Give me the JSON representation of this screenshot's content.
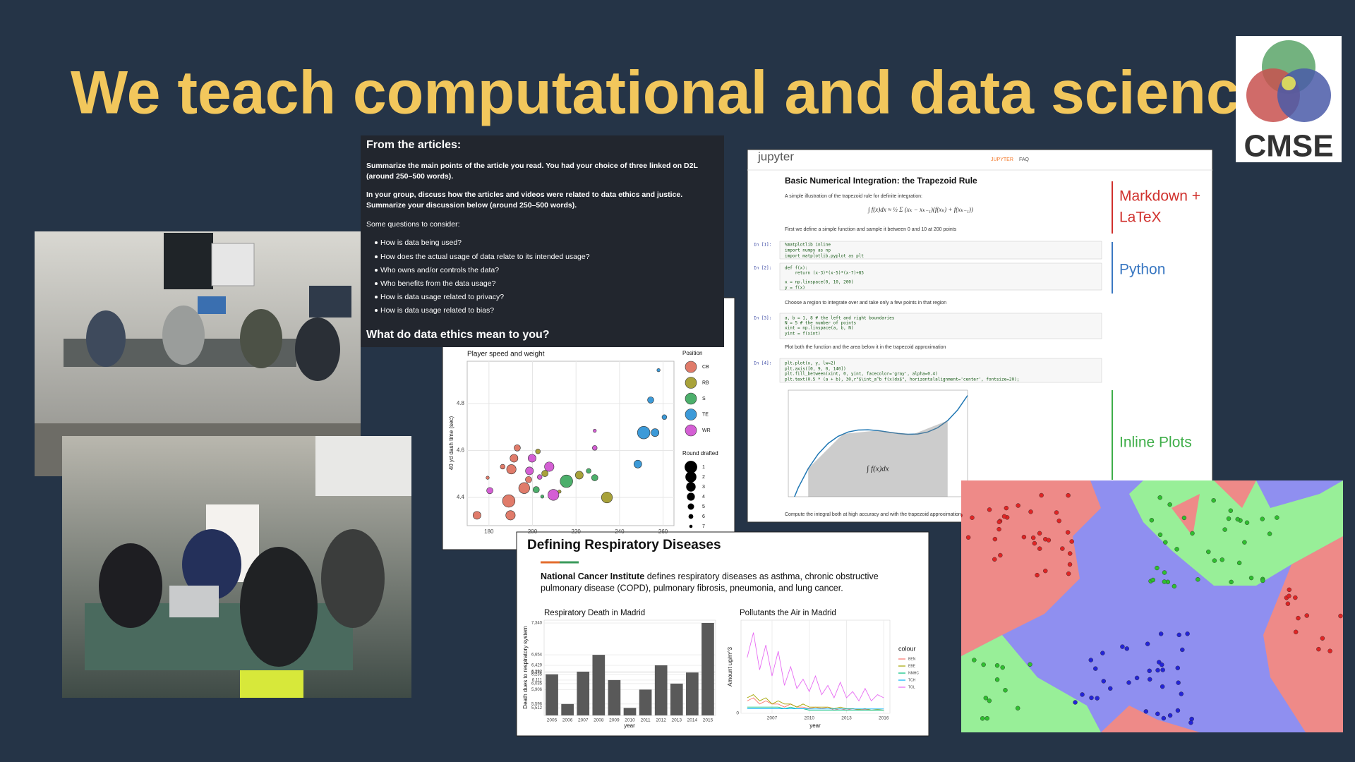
{
  "slide": {
    "title": "We teach computational and data science",
    "logo": "CMSE"
  },
  "articles": {
    "heading": "From the articles:",
    "paragraphs": [
      [
        "Summarize the main points of the article you read. You had your choice of three linked on D2L",
        "(around 250–500 words)."
      ],
      [
        "In your group, discuss how the articles and videos were related to data ethics and justice.",
        "Summarize your discussion below (around 250–500 words)."
      ]
    ],
    "prompt": "Some questions to consider:",
    "questions": [
      "How is data being used?",
      "How does the actual usage of data relate to its intended usage?",
      "Who owns and/or controls the data?",
      "Who benefits from the data usage?",
      "How is data usage related to privacy?",
      "How is data usage related to bias?"
    ],
    "closing": "What do data ethics mean to you?"
  },
  "notebook": {
    "brand": "jupyter",
    "nav": [
      "JUPYTER",
      "FAQ"
    ],
    "heading": "Basic Numerical Integration: the Trapezoid Rule",
    "notes": [
      "A simple illustration of the trapezoid rule for definite integration:",
      "First we define a simple function and sample it between 0 and 10 at 200 points",
      "Choose a region to integrate over and take only a few points in that region",
      "Plot both the function and the area below it in the trapezoid approximation",
      "Compute the integral both at high accuracy and with the trapezoid approximation"
    ],
    "cells": [
      {
        "prompt": "In [1]:",
        "code": [
          "%matplotlib inline",
          "import numpy as np",
          "import matplotlib.pyplot as plt"
        ]
      },
      {
        "prompt": "In [2]:",
        "code": [
          "def f(x):",
          "    return (x-3)*(x-5)*(x-7)+85",
          "x = np.linspace(0, 10, 200)",
          "y = f(x)"
        ]
      },
      {
        "prompt": "In [3]:",
        "code": [
          "a, b = 1, 8 # the left and right boundaries",
          "N = 5 # the number of points",
          "xint = np.linspace(a, b, N)",
          "yint = f(xint)"
        ]
      },
      {
        "prompt": "In [4]:",
        "code": [
          "plt.plot(x, y, lw=2)",
          "plt.axis([0, 9, 0, 140])",
          "plt.fill_between(xint, 0, yint, facecolor='gray', alpha=0.4)",
          "plt.text(0.5 * (a + b), 30,r\"$\\int_a^b f(x)dx$\", horizontalalignment='center', fontsize=20);"
        ]
      }
    ]
  },
  "annotations": [
    {
      "lines": [
        "Markdown +",
        "LaTeX"
      ],
      "color": "#d0312d"
    },
    {
      "lines": [
        "Python"
      ],
      "color": "#3a78c2"
    },
    {
      "lines": [
        "Inline Plots"
      ],
      "color": "#3fae49"
    }
  ],
  "respiratory": {
    "title": "Defining Respiratory Diseases",
    "source": "National Cancer Institute",
    "lines": [
      " defines respiratory diseases as asthma, chronic obstructive",
      "pulmonary disease (COPD), pulmonary fibrosis, pneumonia, and lung cancer."
    ]
  },
  "chart_data": [
    {
      "type": "scatter",
      "title": "Player speed and weight",
      "y_label": "40 yd dash time (sec)",
      "xlim": [
        170,
        265
      ],
      "ylim": [
        4.28,
        4.98
      ],
      "xticks": [
        180,
        200,
        220,
        240,
        260
      ],
      "yticks": [
        4.4,
        4.6,
        4.8
      ],
      "grid": true,
      "legend_title": "Position",
      "size_title": "Round drafted",
      "size_values": [
        1,
        2,
        3,
        4,
        5,
        6,
        7
      ],
      "series": [
        {
          "name": "CB",
          "color": "#e07b6a",
          "x": [
            193.0,
            190.3,
            189.1,
            189.9,
            174.5,
            186.3,
            198.2,
            179.4,
            191.5,
            196.2
          ],
          "values": [
            4.611,
            4.52,
            4.385,
            4.324,
            4.324,
            4.531,
            4.476,
            4.484,
            4.567,
            4.44
          ],
          "sizes": [
            5,
            3,
            1,
            3,
            4,
            6,
            5,
            7,
            4,
            2
          ]
        },
        {
          "name": "RB",
          "color": "#a8a23a",
          "x": [
            234.2,
            202.5,
            205.7,
            212.4,
            221.5
          ],
          "values": [
            4.4,
            4.596,
            4.502,
            4.425,
            4.495
          ],
          "sizes": [
            2,
            6,
            5,
            7,
            4
          ]
        },
        {
          "name": "S",
          "color": "#4caf6b",
          "x": [
            215.6,
            225.8,
            201.7,
            204.5,
            228.6
          ],
          "values": [
            4.469,
            4.513,
            4.433,
            4.404,
            4.484
          ],
          "sizes": [
            1,
            6,
            5,
            7,
            5
          ]
        },
        {
          "name": "TE",
          "color": "#3c9ad8",
          "x": [
            257.9,
            254.3,
            260.6,
            251.1,
            256.3,
            248.4
          ],
          "values": [
            4.942,
            4.815,
            4.742,
            4.676,
            4.676,
            4.542
          ],
          "sizes": [
            7,
            5,
            6,
            1,
            4,
            4
          ]
        },
        {
          "name": "WR",
          "color": "#d45fd4",
          "x": [
            228.6,
            228.6,
            203.3,
            180.4,
            209.6,
            198.6,
            207.7,
            199.8
          ],
          "values": [
            4.684,
            4.611,
            4.487,
            4.429,
            4.411,
            4.513,
            4.531,
            4.567
          ],
          "sizes": [
            7,
            6,
            6,
            5,
            2,
            4,
            3,
            4
          ]
        }
      ]
    },
    {
      "type": "bar",
      "title": "Respiratory Death in Madrid",
      "x_label": "year",
      "y_label": "Death dues to respiratory system",
      "color": "#595959",
      "categories": [
        "2005",
        "2006",
        "2007",
        "2008",
        "2009",
        "2010",
        "2011",
        "2012",
        "2013",
        "2014",
        "2015"
      ],
      "values": [
        6235,
        5596,
        6292,
        6654,
        6111,
        5512,
        5906,
        6429,
        6035,
        6274,
        7340
      ],
      "ylim": [
        5350,
        7400
      ],
      "grid": true,
      "yticks": [
        {
          "value": 5512,
          "label": "5,512"
        },
        {
          "value": 5596,
          "label": "5,596"
        },
        {
          "value": 5906,
          "label": "5,906"
        },
        {
          "value": 6035,
          "label": "6,035"
        },
        {
          "value": 6111,
          "label": "6,111"
        },
        {
          "value": 6235,
          "label": "6,235"
        },
        {
          "value": 6274,
          "label": "6,274"
        },
        {
          "value": 6292,
          "label": "6,292"
        },
        {
          "value": 6429,
          "label": "6,429"
        },
        {
          "value": 6654,
          "label": "6,654"
        },
        {
          "value": 7340,
          "label": "7,340"
        }
      ]
    },
    {
      "type": "line",
      "title": "Pollutants the Air in Madrid",
      "x_label": "year",
      "y_label": "Amount ug/m^3",
      "legend_title": "colour",
      "grid": true,
      "xlim": [
        2004.5,
        2016.5
      ],
      "ylim": [
        0,
        30
      ],
      "xticks": [
        2007,
        2010,
        2013,
        2016
      ],
      "yticks": [
        0
      ],
      "x": [
        2005,
        2005.5,
        2006,
        2006.5,
        2007,
        2007.5,
        2008,
        2008.5,
        2009,
        2009.5,
        2010,
        2010.5,
        2011,
        2011.5,
        2012,
        2012.5,
        2013,
        2013.5,
        2014,
        2014.5,
        2015,
        2015.5,
        2016
      ],
      "series": [
        {
          "name": "BEN",
          "color": "#f8766d",
          "values": [
            4,
            5,
            3,
            4,
            3,
            3,
            2,
            3,
            2,
            2,
            1.5,
            2,
            1.5,
            2,
            1,
            1.5,
            1,
            1.5,
            1,
            1.2,
            1,
            1,
            1
          ]
        },
        {
          "name": "EBE",
          "color": "#a3a500",
          "values": [
            5,
            6,
            4,
            5,
            3,
            4,
            3,
            3,
            2,
            3,
            2,
            2,
            2,
            2,
            1.5,
            2,
            1.5,
            1.5,
            1.2,
            1.5,
            1,
            1.2,
            1
          ]
        },
        {
          "name": "NMHC",
          "color": "#00bf7d",
          "values": [
            2,
            2,
            2,
            2,
            2,
            2,
            1.5,
            2,
            1.5,
            1.5,
            1,
            1,
            1,
            1,
            1,
            1,
            1,
            1,
            1,
            1,
            1,
            1,
            1
          ]
        },
        {
          "name": "TCH",
          "color": "#00b0f6",
          "values": [
            1.5,
            1.5,
            1.5,
            1.5,
            1.5,
            1.5,
            1.5,
            1.5,
            1.5,
            1.5,
            1.4,
            1.4,
            1.4,
            1.4,
            1.4,
            1.4,
            1.4,
            1.4,
            1.4,
            1.4,
            1.4,
            1.4,
            1.4
          ]
        },
        {
          "name": "TOL",
          "color": "#e76bf3",
          "values": [
            18,
            26,
            14,
            22,
            12,
            20,
            9,
            15,
            8,
            11,
            7,
            12,
            6,
            9,
            5,
            10,
            5,
            7,
            4,
            8,
            4,
            6,
            5
          ]
        }
      ]
    },
    {
      "type": "line",
      "color": "#1f77b4",
      "xlim": [
        0,
        9
      ],
      "ylim": [
        0,
        140
      ],
      "x": [
        0,
        0.5,
        1,
        1.5,
        2,
        2.5,
        3,
        3.5,
        4,
        4.5,
        5,
        5.5,
        6,
        6.5,
        7,
        7.5,
        8,
        8.5,
        9
      ],
      "values": [
        -20,
        11.875,
        37,
        56.125,
        70,
        79.375,
        85,
        87.625,
        88,
        86.875,
        85,
        83.125,
        82,
        82.375,
        85,
        90.625,
        100,
        113.875,
        133
      ]
    },
    {
      "type": "area",
      "color": "gray",
      "xlim": [
        0,
        9
      ],
      "ylim": [
        0,
        140
      ],
      "x": [
        1,
        2.75,
        4.5,
        6.25,
        8
      ],
      "values": [
        37,
        82.609375,
        86.875,
        81.953125,
        100
      ]
    }
  ]
}
